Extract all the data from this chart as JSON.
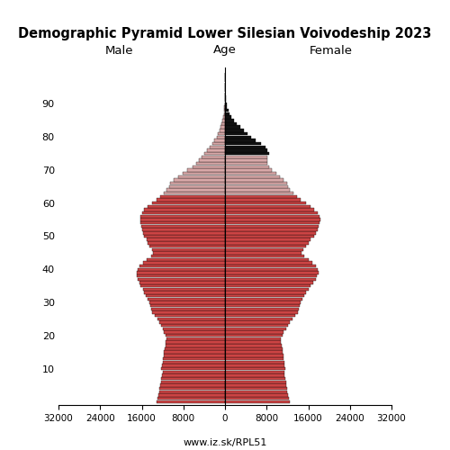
{
  "title": "Demographic Pyramid Lower Silesian Voivodeship 2023",
  "male_label": "Male",
  "female_label": "Female",
  "age_label": "Age",
  "source": "www.iz.sk/RPL51",
  "xlim": 32000,
  "bar_color_main": "#cc4444",
  "bar_color_light": "#d9a8a8",
  "bar_color_dark": "#111111",
  "ages": [
    0,
    1,
    2,
    3,
    4,
    5,
    6,
    7,
    8,
    9,
    10,
    11,
    12,
    13,
    14,
    15,
    16,
    17,
    18,
    19,
    20,
    21,
    22,
    23,
    24,
    25,
    26,
    27,
    28,
    29,
    30,
    31,
    32,
    33,
    34,
    35,
    36,
    37,
    38,
    39,
    40,
    41,
    42,
    43,
    44,
    45,
    46,
    47,
    48,
    49,
    50,
    51,
    52,
    53,
    54,
    55,
    56,
    57,
    58,
    59,
    60,
    61,
    62,
    63,
    64,
    65,
    66,
    67,
    68,
    69,
    70,
    71,
    72,
    73,
    74,
    75,
    76,
    77,
    78,
    79,
    80,
    81,
    82,
    83,
    84,
    85,
    86,
    87,
    88,
    89,
    90,
    91,
    92,
    93,
    94,
    95,
    96,
    97,
    98,
    99
  ],
  "male": [
    13200,
    13000,
    12800,
    12700,
    12600,
    12400,
    12300,
    12200,
    12100,
    12000,
    12200,
    12100,
    12000,
    11900,
    11800,
    11700,
    11600,
    11500,
    11400,
    11300,
    11500,
    11700,
    12000,
    12300,
    12600,
    13000,
    13500,
    14000,
    14200,
    14300,
    14500,
    14800,
    15200,
    15500,
    15800,
    16200,
    16500,
    16800,
    16900,
    17000,
    16800,
    16500,
    15800,
    15000,
    14200,
    13800,
    14000,
    14500,
    14800,
    15100,
    15500,
    15800,
    16000,
    16100,
    16200,
    16300,
    16200,
    16000,
    15500,
    14800,
    14000,
    13200,
    12500,
    11800,
    11200,
    10800,
    10500,
    9800,
    9000,
    8200,
    7200,
    6200,
    5500,
    5000,
    4500,
    4000,
    3500,
    3000,
    2500,
    2000,
    1600,
    1300,
    1050,
    820,
    620,
    470,
    340,
    240,
    160,
    100,
    60,
    35,
    20,
    11,
    6,
    3,
    2,
    1,
    0,
    0
  ],
  "female": [
    12500,
    12300,
    12100,
    12000,
    11900,
    11800,
    11700,
    11600,
    11500,
    11400,
    11600,
    11500,
    11400,
    11300,
    11200,
    11100,
    11000,
    10900,
    10800,
    10700,
    11000,
    11300,
    11700,
    12100,
    12500,
    13000,
    13500,
    14000,
    14200,
    14300,
    14500,
    14800,
    15200,
    15600,
    16000,
    16500,
    17000,
    17400,
    17700,
    18000,
    17800,
    17500,
    16800,
    16000,
    15200,
    14700,
    15000,
    15600,
    16100,
    16500,
    17100,
    17500,
    17800,
    18000,
    18200,
    18300,
    18100,
    17800,
    17200,
    16400,
    15500,
    14600,
    13800,
    13100,
    12500,
    12100,
    11900,
    11300,
    10600,
    9900,
    9000,
    8500,
    8200,
    8100,
    8200,
    8400,
    8200,
    7800,
    7000,
    5800,
    5000,
    4300,
    3600,
    2900,
    2250,
    1720,
    1290,
    930,
    650,
    430,
    280,
    170,
    100,
    58,
    32,
    17,
    9,
    4,
    2,
    1
  ],
  "age_ticks": [
    10,
    20,
    30,
    40,
    50,
    60,
    70,
    80,
    90
  ],
  "male_light_ages": [
    63,
    64,
    65,
    66,
    67,
    68,
    69,
    70,
    71,
    72,
    73,
    74,
    75,
    76,
    77,
    78,
    79,
    80,
    81,
    82,
    83,
    84,
    85,
    86,
    87,
    88,
    89,
    90,
    91,
    92,
    93,
    94,
    95,
    96,
    97,
    98,
    99
  ],
  "female_dark_ages": [
    75,
    76,
    77,
    78,
    79,
    80,
    81,
    82,
    83,
    84,
    85,
    86,
    87,
    88,
    89,
    90,
    91,
    92,
    93,
    94,
    95,
    96,
    97,
    98,
    99
  ],
  "female_light_ages": [
    63,
    64,
    65,
    66,
    67,
    68,
    69,
    70,
    71,
    72,
    73,
    74
  ]
}
